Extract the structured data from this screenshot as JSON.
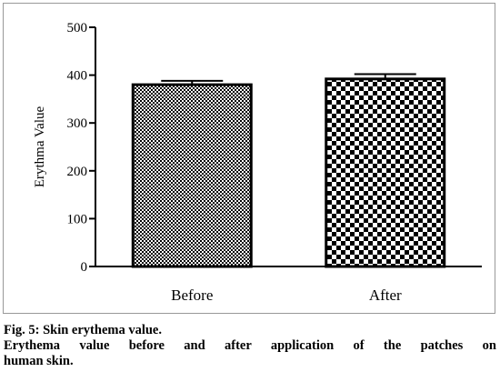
{
  "chart_data": {
    "type": "bar",
    "categories": [
      "Before",
      "After"
    ],
    "values": [
      380,
      392
    ],
    "errors": [
      8,
      10
    ],
    "title": "",
    "xlabel": "",
    "ylabel": "Erythma Value",
    "ylim": [
      0,
      500
    ],
    "yticks": [
      0,
      100,
      200,
      300,
      400,
      500
    ],
    "grid": false,
    "legend": "none",
    "patterns": [
      "fine-checker",
      "coarse-checker"
    ]
  },
  "caption": {
    "fig_label": "Fig. 5: Skin erythema value.",
    "description_line1": "Erythema value before and after application of the patches on",
    "description_line2": "human skin."
  }
}
